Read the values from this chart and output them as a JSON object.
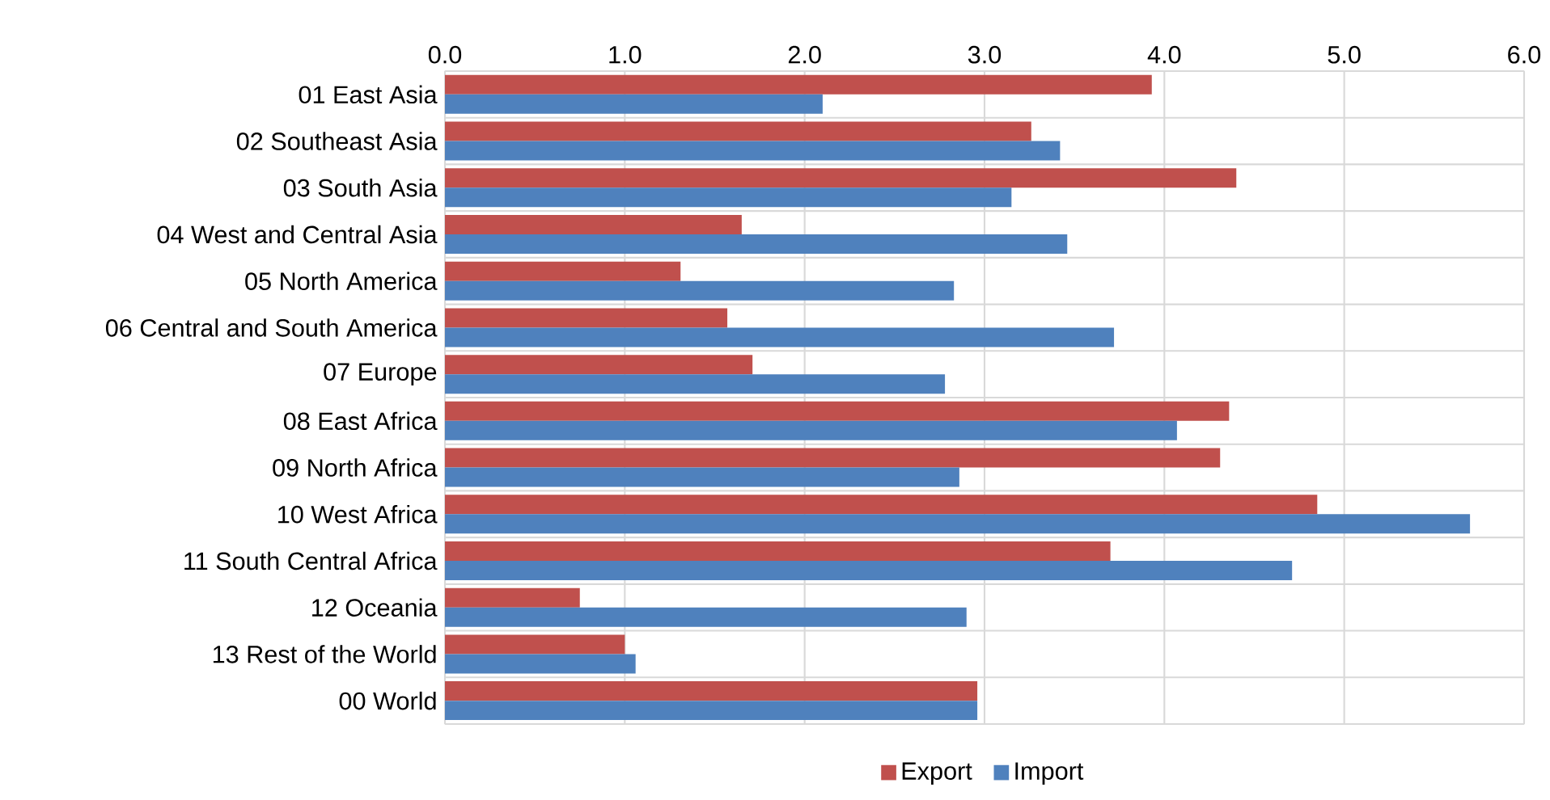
{
  "chart_data": {
    "type": "bar",
    "orientation": "horizontal",
    "categories": [
      "01 East Asia",
      "02 Southeast Asia",
      "03 South Asia",
      "04 West and Central Asia",
      "05 North America",
      "06 Central and South America",
      "07 Europe",
      "08 East Africa",
      "09 North Africa",
      "10 West Africa",
      "11 South Central Africa",
      "12 Oceania",
      "13 Rest of the World",
      "00 World"
    ],
    "series": [
      {
        "name": "Export",
        "color": "#c0504d",
        "values": [
          3.93,
          3.26,
          4.4,
          1.65,
          1.31,
          1.57,
          1.71,
          4.36,
          4.31,
          4.85,
          3.7,
          0.75,
          1.0,
          2.96
        ]
      },
      {
        "name": "Import",
        "color": "#4f81bd",
        "values": [
          2.1,
          3.42,
          3.15,
          3.46,
          2.83,
          3.72,
          2.78,
          4.07,
          2.86,
          5.7,
          4.71,
          2.9,
          1.06,
          2.96
        ]
      }
    ],
    "xlim": [
      0,
      6
    ],
    "xticks": [
      {
        "value": 0,
        "label": "0.0"
      },
      {
        "value": 1,
        "label": "1.0"
      },
      {
        "value": 2,
        "label": "2.0"
      },
      {
        "value": 3,
        "label": "3.0"
      },
      {
        "value": 4,
        "label": "4.0"
      },
      {
        "value": 5,
        "label": "5.0"
      },
      {
        "value": 6,
        "label": "6.0"
      }
    ],
    "grid": true,
    "legend": "bottom"
  }
}
